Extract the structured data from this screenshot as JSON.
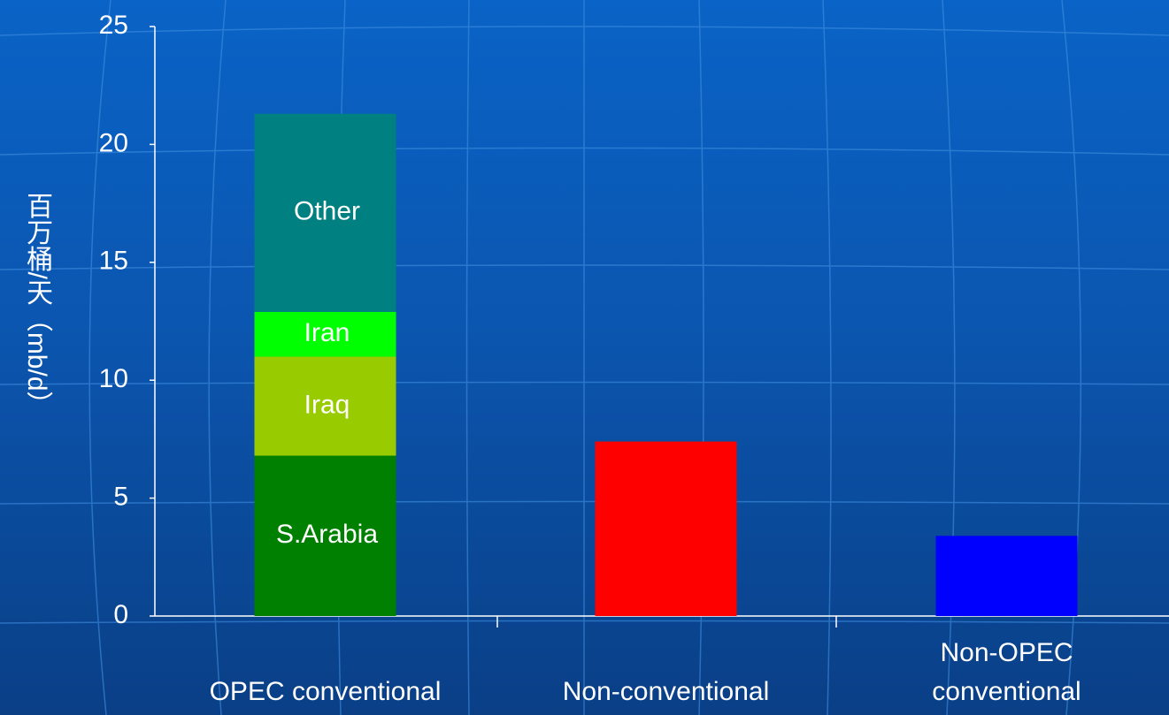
{
  "chart_data": {
    "type": "stacked_bar",
    "ylabel": "百万桶/天（mb/d）",
    "categories": [
      "OPEC conventional",
      "Non-conventional",
      "Non-OPEC conventional"
    ],
    "series": [
      {
        "name": "S.Arabia",
        "color": "#008000",
        "values": [
          6.8,
          null,
          null
        ]
      },
      {
        "name": "Iraq",
        "color": "#99cc00",
        "values": [
          4.2,
          null,
          null
        ]
      },
      {
        "name": "Iran",
        "color": "#00ff00",
        "values": [
          1.9,
          null,
          null
        ]
      },
      {
        "name": "Other",
        "color": "#008080",
        "values": [
          8.4,
          null,
          null
        ]
      },
      {
        "color": "#ff0000",
        "values": [
          null,
          7.4,
          null
        ]
      },
      {
        "color": "#0000ff",
        "values": [
          null,
          null,
          3.4
        ]
      }
    ],
    "ylim": [
      0,
      25
    ],
    "yticks": [
      0,
      5,
      10,
      15,
      20,
      25
    ]
  }
}
